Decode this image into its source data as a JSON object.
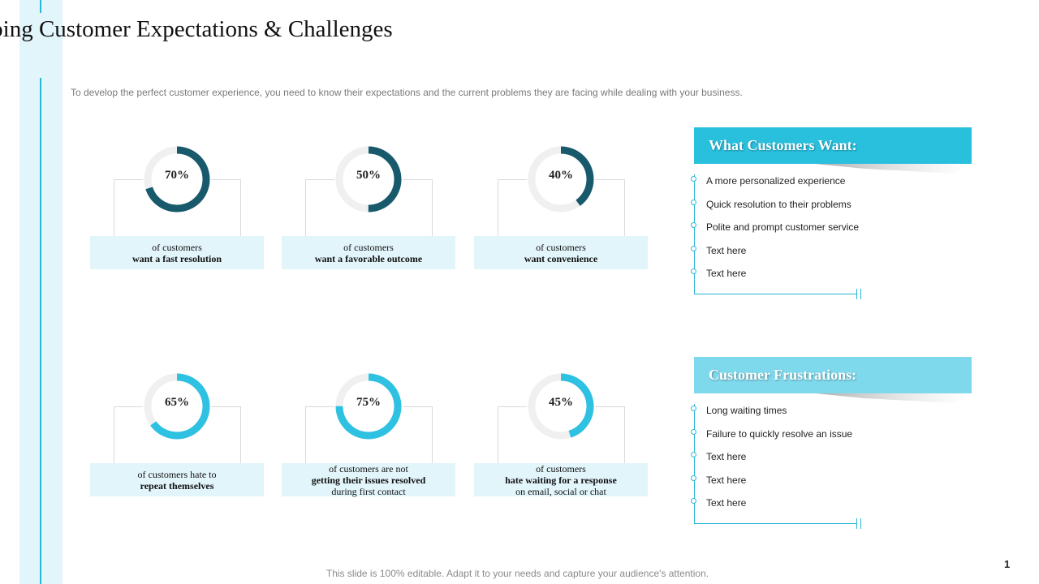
{
  "title": "Mapping Customer Expectations & Challenges",
  "subtitle": "To develop the perfect customer experience, you need to know their expectations and the current problems they are facing while dealing with your business.",
  "colors": {
    "dark": "#185a6c",
    "light": "#2ec1e2",
    "track": "#f0f0f0",
    "accent": "#29b6d8",
    "panel1": "#29c0de",
    "panel2": "#7fd9ec"
  },
  "stats": [
    {
      "percent": "70%",
      "value": 70,
      "line1": "of customers",
      "line2": "want a fast resolution",
      "line3": ""
    },
    {
      "percent": "50%",
      "value": 50,
      "line1": "of customers",
      "line2": "want a favorable outcome",
      "line3": ""
    },
    {
      "percent": "40%",
      "value": 40,
      "line1": "of customers",
      "line2": "want convenience",
      "line3": ""
    },
    {
      "percent": "65%",
      "value": 65,
      "line1": "of customers hate to",
      "line2": "repeat themselves",
      "line3": ""
    },
    {
      "percent": "75%",
      "value": 75,
      "line1": "of customers are not",
      "line2": "getting their issues resolved",
      "line3": "during first contact"
    },
    {
      "percent": "45%",
      "value": 45,
      "line1": "of customers",
      "line2": "hate waiting for a response",
      "line3": "on email, social or chat"
    }
  ],
  "wants": {
    "title": "What Customers Want:",
    "items": [
      "A more personalized experience",
      "Quick resolution to their problems",
      "Polite and prompt customer service",
      "Text here",
      "Text here"
    ]
  },
  "frustrations": {
    "title": "Customer Frustrations:",
    "items": [
      "Long waiting times",
      "Failure to quickly resolve an issue",
      "Text here",
      "Text here",
      "Text here"
    ]
  },
  "footer": "This slide is 100% editable. Adapt it to your needs and capture your audience's attention.",
  "page_number": "1"
}
